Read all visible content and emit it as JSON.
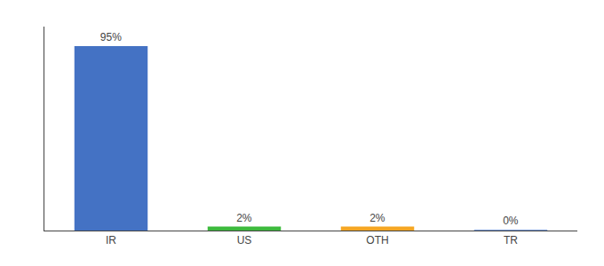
{
  "chart_data": {
    "type": "bar",
    "categories": [
      "IR",
      "US",
      "OTH",
      "TR"
    ],
    "values": [
      95,
      2,
      2,
      0.3
    ],
    "value_labels": [
      "95%",
      "2%",
      "2%",
      "0%"
    ],
    "data_labels": true,
    "colors": [
      "#4472c4",
      "#3dba3d",
      "#f5a623",
      "#4472c4"
    ],
    "ylim": [
      0,
      105
    ],
    "tick_labels": "x",
    "grid": false
  }
}
